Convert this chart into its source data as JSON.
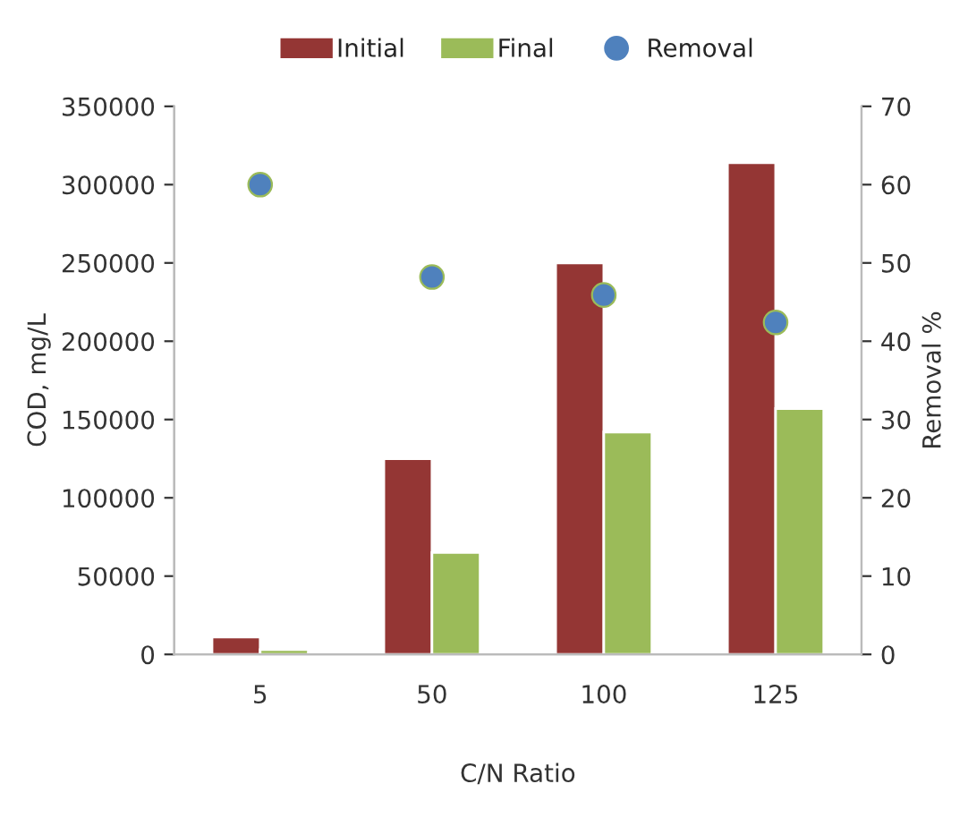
{
  "chart_data": {
    "type": "bar",
    "categories": [
      "5",
      "50",
      "100",
      "125"
    ],
    "xlabel": "C/N Ratio",
    "ylabel": "COD, mg/L",
    "y2label": "Removal %",
    "series": [
      {
        "name": "Initial",
        "color": "#943634",
        "values": [
          11000,
          125000,
          250000,
          314000
        ]
      },
      {
        "name": "Final",
        "color": "#9bbb59",
        "values": [
          3000,
          65000,
          142000,
          157000
        ]
      },
      {
        "name": "Removal",
        "type": "scatter",
        "axis": "y2",
        "color": "#4f81bd",
        "values": [
          60,
          48.2,
          45.9,
          42.4
        ]
      }
    ],
    "ylim": [
      0,
      350000
    ],
    "yticks": [
      0,
      50000,
      100000,
      150000,
      200000,
      250000,
      300000,
      350000
    ],
    "y2lim": [
      0,
      70
    ],
    "y2ticks": [
      0,
      10,
      20,
      30,
      40,
      50,
      60,
      70
    ],
    "grid": false,
    "legend": "top",
    "marker": "circle"
  }
}
